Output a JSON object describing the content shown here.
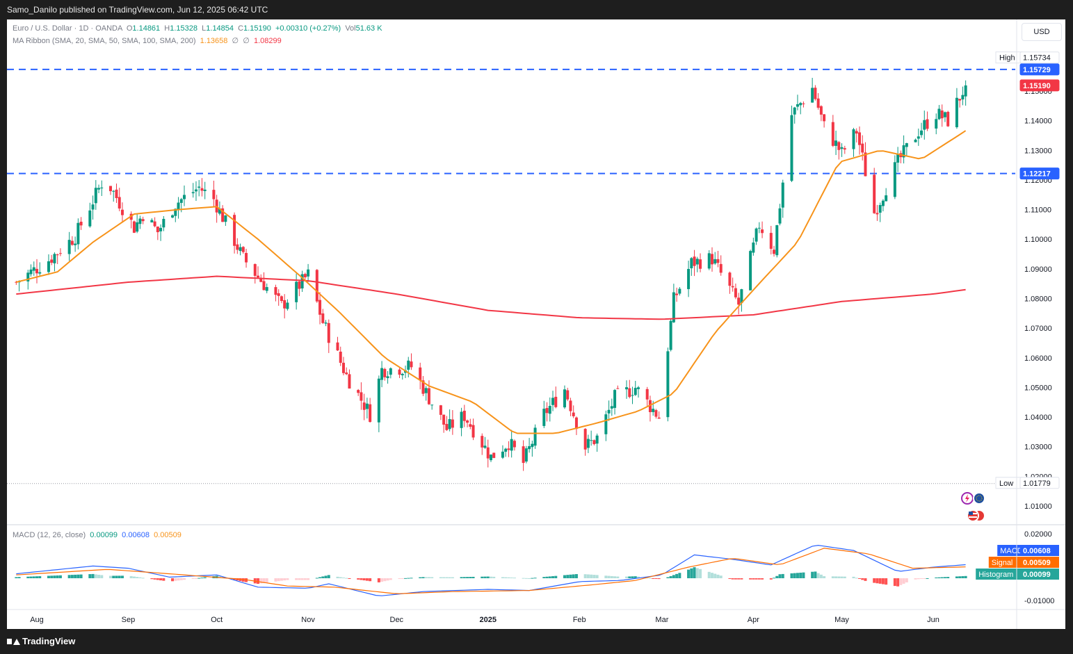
{
  "header": {
    "publisher": "Samo_Danilo published on TradingView.com, Jun 12, 2025 06:42 UTC"
  },
  "footer": {
    "brand": "TradingView"
  },
  "currency_button": "USD",
  "legend": {
    "symbol": "Euro / U.S. Dollar · 1D · OANDA",
    "o_label": "O",
    "o_value": "1.14861",
    "h_label": "H",
    "h_value": "1.15328",
    "l_label": "L",
    "l_value": "1.14854",
    "c_label": "C",
    "c_value": "1.15190",
    "change": "+0.00310 (+0.27%)",
    "vol_label": "Vol",
    "vol_value": "51.63 K",
    "ma_ribbon": "MA Ribbon (SMA, 20, SMA, 50, SMA, 100, SMA, 200)",
    "ma20": "1.13658",
    "ma50": "∅",
    "ma100": "∅",
    "ma200": "1.08299",
    "macd_title": "MACD (12, 26, close)",
    "macd_hist": "0.00099",
    "macd_line": "0.00608",
    "macd_signal": "0.00509"
  },
  "colors": {
    "up": "#089981",
    "down": "#f23645",
    "ma20": "#f7931a",
    "ma200": "#f23645",
    "levels": "#2962ff",
    "macd": "#2962ff",
    "signal": "#ff6d00"
  },
  "price_badges": [
    {
      "label": "High",
      "value": "1.15734"
    },
    {
      "label": "",
      "value": "1.15729"
    },
    {
      "label": "",
      "value": "1.15190"
    },
    {
      "label": "",
      "value": "1.12217"
    },
    {
      "label": "Low",
      "value": "1.01779"
    }
  ],
  "macd_badges": [
    {
      "label": "MACD",
      "value": "0.00608"
    },
    {
      "label": "Signal",
      "value": "0.00509"
    },
    {
      "label": "Histogram",
      "value": "0.00099"
    }
  ],
  "chart_data": {
    "type": "candlestick",
    "symbol": "EURUSD",
    "timeframe": "1D",
    "ylim": [
      1.004,
      1.165
    ],
    "y_ticks": [
      "1.15000",
      "1.14000",
      "1.13000",
      "1.12000",
      "1.11000",
      "1.10000",
      "1.09000",
      "1.08000",
      "1.07000",
      "1.06000",
      "1.05000",
      "1.04000",
      "1.03000",
      "1.02000",
      "1.01000"
    ],
    "x_ticks": [
      "Aug",
      "Sep",
      "Oct",
      "Nov",
      "Dec",
      "2025",
      "Feb",
      "Mar",
      "Apr",
      "May",
      "Jun"
    ],
    "horizontal_levels": [
      1.15729,
      1.12217
    ],
    "high": 1.15734,
    "low": 1.01779,
    "last_close": 1.1519,
    "price_anchors": [
      [
        "Jul 25",
        1.0855
      ],
      [
        "Aug 5",
        1.093
      ],
      [
        "Aug 14",
        1.101
      ],
      [
        "Aug 23",
        1.119
      ],
      [
        "Aug 26",
        1.1175
      ],
      [
        "Sep 3",
        1.104
      ],
      [
        "Sep 6",
        1.1085
      ],
      [
        "Sep 11",
        1.1025
      ],
      [
        "Sep 17",
        1.112
      ],
      [
        "Sep 25",
        1.1175
      ],
      [
        "Sep 30",
        1.1135
      ],
      [
        "Oct 10",
        1.0935
      ],
      [
        "Oct 23",
        1.0775
      ],
      [
        "Nov 1",
        1.088
      ],
      [
        "Nov 6",
        1.072
      ],
      [
        "Nov 14",
        1.054
      ],
      [
        "Nov 22",
        1.041
      ],
      [
        "Nov 26",
        1.056
      ],
      [
        "Dec 6",
        1.057
      ],
      [
        "Dec 18",
        1.036
      ],
      [
        "Dec 24",
        1.0405
      ],
      [
        "Jan 2",
        1.0265
      ],
      [
        "Jan 8",
        1.0315
      ],
      [
        "Jan 13",
        1.0245
      ],
      [
        "Jan 20",
        1.041
      ],
      [
        "Jan 27",
        1.0495
      ],
      [
        "Feb 3",
        1.03
      ],
      [
        "Feb 7",
        1.033
      ],
      [
        "Feb 13",
        1.0465
      ],
      [
        "Feb 20",
        1.05
      ],
      [
        "Feb 28",
        1.04
      ],
      [
        "Mar 5",
        1.0795
      ],
      [
        "Mar 11",
        1.092
      ],
      [
        "Mar 18",
        1.0935
      ],
      [
        "Mar 27",
        1.078
      ],
      [
        "Apr 3",
        1.105
      ],
      [
        "Apr 8",
        1.0965
      ],
      [
        "Apr 14",
        1.142
      ],
      [
        "Apr 21",
        1.151
      ],
      [
        "Apr 25",
        1.138
      ],
      [
        "May 1",
        1.129
      ],
      [
        "May 6",
        1.1365
      ],
      [
        "May 12",
        1.109
      ],
      [
        "May 20",
        1.126
      ],
      [
        "May 27",
        1.1365
      ],
      [
        "Jun 2",
        1.1425
      ],
      [
        "Jun 6",
        1.14
      ],
      [
        "Jun 12",
        1.1519
      ]
    ],
    "sma20_anchors": [
      [
        "Jul 25",
        1.0855
      ],
      [
        "Aug 8",
        1.089
      ],
      [
        "Aug 20",
        1.099
      ],
      [
        "Sep 3",
        1.1085
      ],
      [
        "Sep 18",
        1.11
      ],
      [
        "Oct 1",
        1.111
      ],
      [
        "Oct 15",
        1.1
      ],
      [
        "Oct 30",
        1.087
      ],
      [
        "Nov 12",
        1.075
      ],
      [
        "Nov 27",
        1.06
      ],
      [
        "Dec 12",
        1.0505
      ],
      [
        "Dec 27",
        1.045
      ],
      [
        "Jan 10",
        1.0345
      ],
      [
        "Jan 24",
        1.0345
      ],
      [
        "Feb 7",
        1.038
      ],
      [
        "Feb 21",
        1.042
      ],
      [
        "Mar 5",
        1.048
      ],
      [
        "Mar 19",
        1.0685
      ],
      [
        "Apr 2",
        1.084
      ],
      [
        "Apr 16",
        1.099
      ],
      [
        "Apr 30",
        1.126
      ],
      [
        "May 14",
        1.13
      ],
      [
        "May 28",
        1.127
      ],
      [
        "Jun 12",
        1.1366
      ]
    ],
    "sma200_anchors": [
      [
        "Jul 25",
        1.0815
      ],
      [
        "Sep 1",
        1.0855
      ],
      [
        "Oct 1",
        1.0875
      ],
      [
        "Nov 1",
        1.086
      ],
      [
        "Dec 1",
        1.0815
      ],
      [
        "Jan 1",
        1.076
      ],
      [
        "Feb 1",
        1.0735
      ],
      [
        "Mar 1",
        1.073
      ],
      [
        "Apr 1",
        1.0745
      ],
      [
        "May 1",
        1.079
      ],
      [
        "Jun 1",
        1.0815
      ],
      [
        "Jun 12",
        1.083
      ]
    ],
    "macd": {
      "ylim": [
        -0.0125,
        0.0225
      ],
      "y_ticks": [
        "0.02000",
        "-0.01000"
      ],
      "macd_anchors": [
        [
          "Jul 25",
          0.002
        ],
        [
          "Aug 20",
          0.0055
        ],
        [
          "Sep 1",
          0.0045
        ],
        [
          "Sep 15",
          0.0005
        ],
        [
          "Oct 1",
          0.0015
        ],
        [
          "Oct 15",
          -0.004
        ],
        [
          "Nov 1",
          -0.0045
        ],
        [
          "Nov 8",
          -0.0025
        ],
        [
          "Nov 25",
          -0.008
        ],
        [
          "Dec 10",
          -0.006
        ],
        [
          "Jan 1",
          -0.005
        ],
        [
          "Jan 15",
          -0.0055
        ],
        [
          "Feb 1",
          -0.0015
        ],
        [
          "Feb 15",
          -0.001
        ],
        [
          "Mar 1",
          0.0015
        ],
        [
          "Mar 12",
          0.0105
        ],
        [
          "Mar 25",
          0.0085
        ],
        [
          "Apr 7",
          0.006
        ],
        [
          "Apr 22",
          0.015
        ],
        [
          "May 5",
          0.0125
        ],
        [
          "May 20",
          0.003
        ],
        [
          "Jun 1",
          0.005
        ],
        [
          "Jun 12",
          0.0061
        ]
      ],
      "signal_anchors": [
        [
          "Jul 25",
          0.0015
        ],
        [
          "Aug 25",
          0.004
        ],
        [
          "Sep 10",
          0.0025
        ],
        [
          "Sep 25",
          0.001
        ],
        [
          "Oct 10",
          -0.0005
        ],
        [
          "Oct 25",
          -0.0035
        ],
        [
          "Nov 10",
          -0.004
        ],
        [
          "Dec 1",
          -0.007
        ],
        [
          "Dec 20",
          -0.006
        ],
        [
          "Jan 15",
          -0.0055
        ],
        [
          "Feb 5",
          -0.003
        ],
        [
          "Feb 20",
          -0.001
        ],
        [
          "Mar 10",
          0.005
        ],
        [
          "Mar 25",
          0.009
        ],
        [
          "Apr 10",
          0.006
        ],
        [
          "Apr 25",
          0.0135
        ],
        [
          "May 10",
          0.011
        ],
        [
          "May 25",
          0.0045
        ],
        [
          "Jun 12",
          0.0051
        ]
      ]
    }
  }
}
